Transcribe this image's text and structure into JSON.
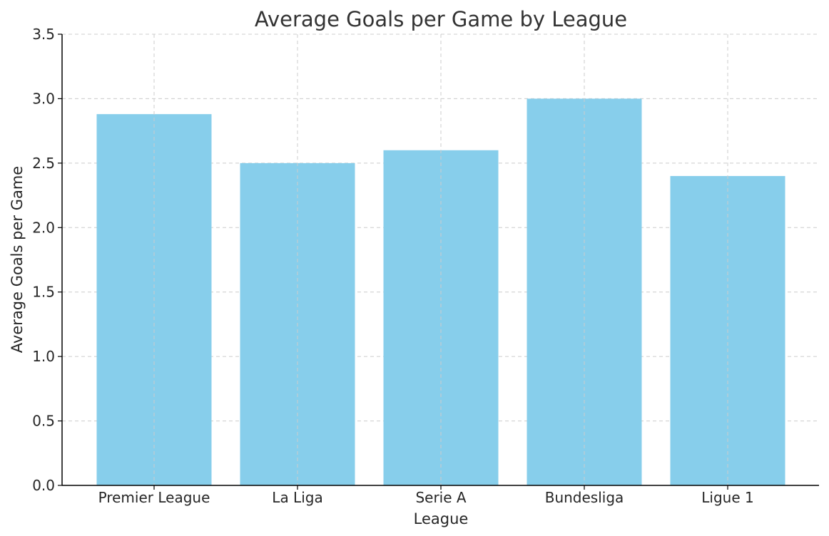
{
  "chart_data": {
    "type": "bar",
    "title": "Average Goals per Game by League",
    "xlabel": "League",
    "ylabel": "Average Goals per Game",
    "categories": [
      "Premier League",
      "La Liga",
      "Serie A",
      "Bundesliga",
      "Ligue 1"
    ],
    "values": [
      2.88,
      2.5,
      2.6,
      3.0,
      2.4
    ],
    "ylim": [
      0,
      3.5
    ],
    "yticks": [
      "0.0",
      "0.5",
      "1.0",
      "1.5",
      "2.0",
      "2.5",
      "3.0",
      "3.5"
    ],
    "grid": true,
    "bar_color": "#87CEEB"
  }
}
